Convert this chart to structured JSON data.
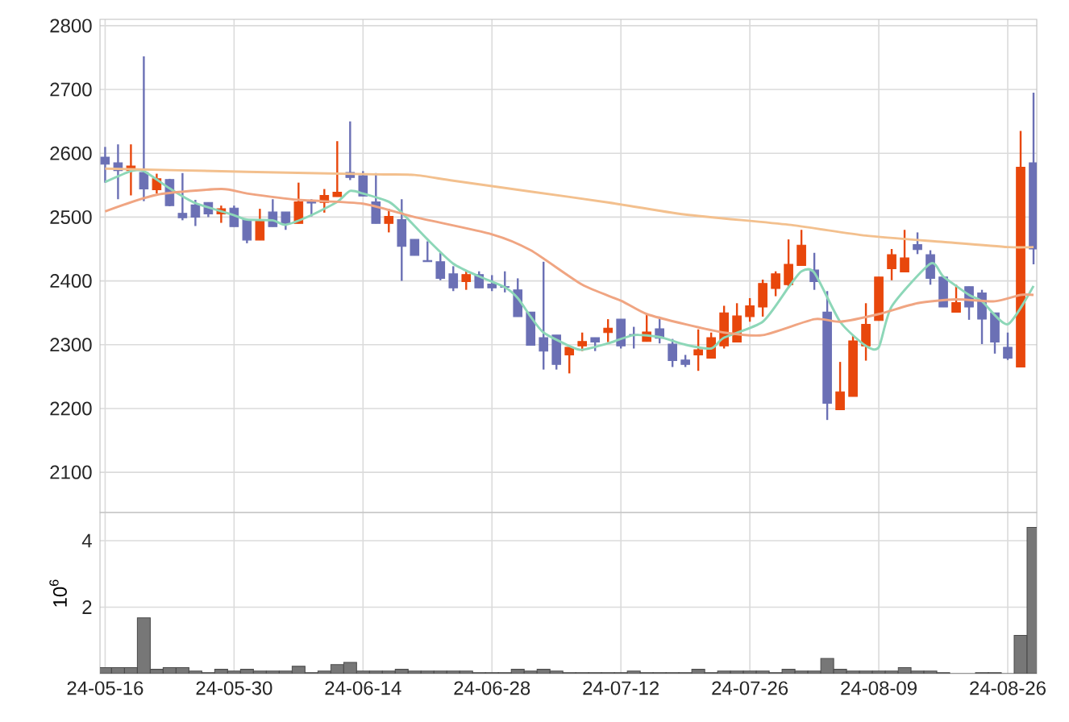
{
  "chart_data": [
    {
      "type": "candlestick",
      "categories": [
        null,
        null,
        null,
        null,
        null,
        null,
        null,
        null,
        null,
        null,
        null,
        null,
        null,
        null,
        null,
        null,
        null,
        null,
        null,
        null,
        null,
        null,
        null,
        null,
        null,
        null,
        null,
        null,
        null,
        null,
        null,
        null,
        null,
        null,
        null,
        null,
        null,
        null,
        null,
        null,
        null,
        null,
        null,
        null,
        null,
        null,
        null,
        null,
        null,
        null,
        null,
        null,
        null,
        null,
        null,
        null,
        null,
        null,
        null,
        null,
        null,
        null,
        null,
        null,
        null,
        null,
        null,
        null,
        null,
        null,
        null,
        null,
        null
      ],
      "ylim": [
        2037,
        2810
      ],
      "yticks": [
        2100,
        2200,
        2300,
        2400,
        2500,
        2600,
        2700,
        2800
      ],
      "grid": true,
      "tick_labels": "y",
      "series": [
        {
          "type": "candlestick",
          "ohlc": [
            [
              2594,
              2610,
              2554,
              2583
            ],
            [
              2585,
              2614,
              2528,
              2573
            ],
            [
              2573,
              2614,
              2534,
              2580
            ],
            [
              2570,
              2752,
              2525,
              2544
            ],
            [
              2543,
              2568,
              2537,
              2560
            ],
            [
              2559,
              2560,
              2517,
              2518
            ],
            [
              2506,
              2569,
              2495,
              2499
            ],
            [
              2519,
              2527,
              2486,
              2500
            ],
            [
              2523,
              2523,
              2500,
              2505
            ],
            [
              2505,
              2518,
              2491,
              2513
            ],
            [
              2514,
              2518,
              2485,
              2485
            ],
            [
              2496,
              2496,
              2459,
              2464
            ],
            [
              2464,
              2513,
              2464,
              2496
            ],
            [
              2508,
              2528,
              2485,
              2485
            ],
            [
              2508,
              2508,
              2480,
              2490
            ],
            [
              2490,
              2554,
              2490,
              2524
            ],
            [
              2525,
              2528,
              2501,
              2522
            ],
            [
              2523,
              2544,
              2507,
              2534
            ],
            [
              2532,
              2619,
              2532,
              2539
            ],
            [
              2570,
              2650,
              2558,
              2562
            ],
            [
              2565,
              2572,
              2533,
              2533
            ],
            [
              2524,
              2569,
              2490,
              2490
            ],
            [
              2490,
              2513,
              2476,
              2501
            ],
            [
              2496,
              2528,
              2400,
              2454
            ],
            [
              2465,
              2465,
              2440,
              2440
            ],
            [
              2432,
              2462,
              2430,
              2430
            ],
            [
              2430,
              2444,
              2401,
              2404
            ],
            [
              2411,
              2423,
              2384,
              2389
            ],
            [
              2399,
              2415,
              2386,
              2410
            ],
            [
              2410,
              2415,
              2389,
              2389
            ],
            [
              2395,
              2409,
              2384,
              2389
            ],
            [
              2391,
              2415,
              2382,
              2390
            ],
            [
              2386,
              2404,
              2344,
              2344
            ],
            [
              2351,
              2351,
              2299,
              2299
            ],
            [
              2311,
              2430,
              2261,
              2290
            ],
            [
              2315,
              2315,
              2261,
              2269
            ],
            [
              2284,
              2296,
              2255,
              2296
            ],
            [
              2298,
              2319,
              2290,
              2305
            ],
            [
              2311,
              2311,
              2290,
              2304
            ],
            [
              2319,
              2340,
              2304,
              2326
            ],
            [
              2340,
              2340,
              2294,
              2298
            ],
            [
              2316,
              2328,
              2294,
              2315
            ],
            [
              2305,
              2348,
              2305,
              2320
            ],
            [
              2325,
              2344,
              2302,
              2310
            ],
            [
              2301,
              2309,
              2265,
              2275
            ],
            [
              2276,
              2284,
              2265,
              2269
            ],
            [
              2284,
              2324,
              2259,
              2292
            ],
            [
              2279,
              2319,
              2279,
              2311
            ],
            [
              2298,
              2361,
              2294,
              2350
            ],
            [
              2304,
              2365,
              2304,
              2345
            ],
            [
              2344,
              2373,
              2336,
              2361
            ],
            [
              2359,
              2402,
              2344,
              2396
            ],
            [
              2388,
              2415,
              2376,
              2411
            ],
            [
              2394,
              2465,
              2390,
              2426
            ],
            [
              2424,
              2480,
              2424,
              2456
            ],
            [
              2417,
              2444,
              2386,
              2399
            ],
            [
              2351,
              2384,
              2182,
              2208
            ],
            [
              2198,
              2273,
              2198,
              2226
            ],
            [
              2219,
              2314,
              2219,
              2306
            ],
            [
              2298,
              2365,
              2275,
              2332
            ],
            [
              2338,
              2406,
              2338,
              2406
            ],
            [
              2419,
              2450,
              2401,
              2441
            ],
            [
              2414,
              2480,
              2414,
              2436
            ],
            [
              2457,
              2476,
              2442,
              2449
            ],
            [
              2441,
              2448,
              2394,
              2404
            ],
            [
              2406,
              2406,
              2359,
              2359
            ],
            [
              2351,
              2394,
              2351,
              2366
            ],
            [
              2391,
              2391,
              2339,
              2359
            ],
            [
              2381,
              2386,
              2301,
              2340
            ],
            [
              2350,
              2350,
              2286,
              2304
            ],
            [
              2296,
              2319,
              2276,
              2279
            ],
            [
              2265,
              2635,
              2265,
              2578
            ],
            [
              2585,
              2695,
              2426,
              2450
            ]
          ],
          "colors": [
            "#6b70b5",
            "#6b70b5",
            "#e8470c",
            "#6b70b5",
            "#e8470c",
            "#6b70b5",
            "#6b70b5",
            "#6b70b5",
            "#6b70b5",
            "#e8470c",
            "#6b70b5",
            "#6b70b5",
            "#e8470c",
            "#6b70b5",
            "#6b70b5",
            "#e8470c",
            "#6b70b5",
            "#e8470c",
            "#e8470c",
            "#6b70b5",
            "#6b70b5",
            "#6b70b5",
            "#e8470c",
            "#6b70b5",
            "#6b70b5",
            "#6b70b5",
            "#6b70b5",
            "#6b70b5",
            "#e8470c",
            "#6b70b5",
            "#6b70b5",
            "#6b70b5",
            "#6b70b5",
            "#6b70b5",
            "#6b70b5",
            "#6b70b5",
            "#e8470c",
            "#e8470c",
            "#6b70b5",
            "#e8470c",
            "#6b70b5",
            "#6b70b5",
            "#e8470c",
            "#6b70b5",
            "#6b70b5",
            "#6b70b5",
            "#e8470c",
            "#e8470c",
            "#e8470c",
            "#e8470c",
            "#e8470c",
            "#e8470c",
            "#e8470c",
            "#e8470c",
            "#e8470c",
            "#6b70b5",
            "#6b70b5",
            "#e8470c",
            "#e8470c",
            "#e8470c",
            "#e8470c",
            "#e8470c",
            "#e8470c",
            "#6b70b5",
            "#6b70b5",
            "#6b70b5",
            "#e8470c",
            "#6b70b5",
            "#6b70b5",
            "#6b70b5",
            "#6b70b5",
            "#e8470c",
            "#6b70b5"
          ]
        },
        {
          "type": "line",
          "color": "#8dd7b8",
          "values": [
            2555,
            null,
            2572,
            2572,
            null,
            2545,
            null,
            2522,
            null,
            null,
            2503,
            2496,
            null,
            2495,
            2488,
            null,
            2503,
            null,
            2524,
            2541,
            2537,
            null,
            2524,
            2507,
            null,
            2465,
            null,
            2427,
            null,
            2407,
            null,
            2390,
            2373,
            2344,
            2319,
            null,
            2298,
            2292,
            null,
            2302,
            null,
            2315,
            null,
            2312,
            null,
            2300,
            null,
            2294,
            2311,
            null,
            null,
            2336,
            null,
            2390,
            2415,
            2413,
            null,
            2336,
            null,
            2298,
            2296,
            2360,
            null,
            null,
            2427,
            2407,
            null,
            2378,
            2368,
            null,
            2332,
            null,
            2392
          ]
        },
        {
          "type": "line",
          "color": "#f0a582",
          "values": [
            2509,
            null,
            null,
            null,
            2535,
            null,
            null,
            null,
            null,
            2544,
            null,
            2537,
            null,
            null,
            null,
            2527,
            null,
            null,
            null,
            null,
            2521,
            null,
            null,
            null,
            2500,
            null,
            null,
            null,
            null,
            null,
            2473,
            null,
            null,
            2448,
            null,
            null,
            null,
            2394,
            null,
            null,
            2369,
            null,
            2348,
            null,
            null,
            2332,
            null,
            null,
            2319,
            null,
            null,
            2315,
            null,
            null,
            null,
            2340,
            null,
            2336,
            null,
            null,
            2348,
            null,
            null,
            2365,
            null,
            null,
            2371,
            null,
            null,
            2368,
            null,
            2378,
            2378
          ]
        },
        {
          "type": "line",
          "color": "#f3c08e",
          "values": [
            2576,
            null,
            null,
            null,
            null,
            null,
            null,
            null,
            null,
            null,
            null,
            2571,
            null,
            null,
            null,
            null,
            null,
            null,
            null,
            null,
            null,
            2567,
            null,
            null,
            2566,
            null,
            null,
            2557,
            null,
            null,
            null,
            null,
            null,
            2540,
            null,
            null,
            null,
            null,
            null,
            2523,
            null,
            null,
            null,
            null,
            null,
            2504,
            null,
            null,
            null,
            null,
            null,
            null,
            null,
            2488,
            null,
            null,
            null,
            null,
            null,
            2471,
            null,
            null,
            null,
            null,
            null,
            2461,
            null,
            null,
            null,
            null,
            2453,
            null,
            2453
          ]
        }
      ]
    },
    {
      "type": "bar",
      "categories": [
        "24-05-16",
        null,
        null,
        null,
        null,
        null,
        null,
        null,
        null,
        null,
        "24-05-30",
        null,
        null,
        null,
        null,
        null,
        null,
        null,
        null,
        null,
        "24-06-14",
        null,
        null,
        null,
        null,
        null,
        null,
        null,
        null,
        null,
        "24-06-28",
        null,
        null,
        null,
        null,
        null,
        null,
        null,
        null,
        null,
        "24-07-12",
        null,
        null,
        null,
        null,
        null,
        null,
        null,
        null,
        null,
        "24-07-26",
        null,
        null,
        null,
        null,
        null,
        null,
        null,
        null,
        null,
        "24-08-09",
        null,
        null,
        null,
        null,
        null,
        null,
        null,
        null,
        null,
        "24-08-26",
        null,
        null
      ],
      "values": [
        0.18,
        0.18,
        0.18,
        1.68,
        0.13,
        0.18,
        0.18,
        0.08,
        0.03,
        0.13,
        0.08,
        0.13,
        0.08,
        0.08,
        0.08,
        0.22,
        0.03,
        0.08,
        0.27,
        0.34,
        0.08,
        0.08,
        0.08,
        0.13,
        0.08,
        0.08,
        0.08,
        0.08,
        0.08,
        0.03,
        0.03,
        0.03,
        0.13,
        0.08,
        0.13,
        0.08,
        0.03,
        0.03,
        0.03,
        0.03,
        0.03,
        0.08,
        0.03,
        0.03,
        0.03,
        0.03,
        0.13,
        0.03,
        0.08,
        0.08,
        0.08,
        0.08,
        0.03,
        0.13,
        0.08,
        0.08,
        0.46,
        0.13,
        0.08,
        0.08,
        0.08,
        0.08,
        0.18,
        0.08,
        0.08,
        0.03,
        0,
        0,
        0.03,
        0.03,
        0,
        1.15,
        4.4
      ],
      "color": "#777777",
      "ylabel": "10$^{6}$",
      "ylim": [
        0,
        4.85
      ],
      "yticks": [
        2,
        4
      ],
      "grid": true
    }
  ]
}
